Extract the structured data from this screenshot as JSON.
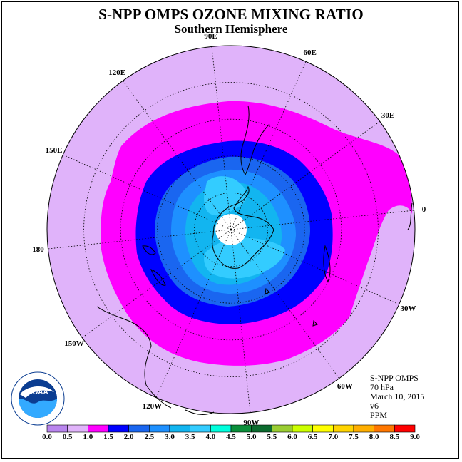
{
  "title": "S-NPP OMPS OZONE MIXING RATIO",
  "subtitle": "Southern Hemisphere",
  "longitude_labels": [
    {
      "text": "90W",
      "lon": -90
    },
    {
      "text": "60W",
      "lon": -60
    },
    {
      "text": "30W",
      "lon": -30
    },
    {
      "text": "0",
      "lon": 0
    },
    {
      "text": "30E",
      "lon": 30
    },
    {
      "text": "60E",
      "lon": 60
    },
    {
      "text": "90E",
      "lon": 90
    },
    {
      "text": "120E",
      "lon": 120
    },
    {
      "text": "150E",
      "lon": 150
    },
    {
      "text": "180",
      "lon": 180
    },
    {
      "text": "150W",
      "lon": -150
    },
    {
      "text": "120W",
      "lon": -120
    }
  ],
  "info": {
    "instrument": "S-NPP OMPS",
    "level": "70 hPa",
    "date": "March 10, 2015",
    "version": "v6",
    "units": "PPM"
  },
  "logo_text": "NOAA",
  "colorbar": {
    "labels": [
      "0.0",
      "0.5",
      "1.0",
      "1.5",
      "2.0",
      "2.5",
      "3.0",
      "3.5",
      "4.0",
      "4.5",
      "5.0",
      "5.5",
      "6.0",
      "6.5",
      "7.0",
      "7.5",
      "8.0",
      "8.5",
      "9.0"
    ],
    "colors": [
      "#b985ee",
      "#e0b3fa",
      "#ff00ff",
      "#0000ff",
      "#1a66f0",
      "#1e90ff",
      "#12b5f0",
      "#33ccff",
      "#00ffdd",
      "#0a8f3a",
      "#0b6b2e",
      "#9acd32",
      "#ccff00",
      "#ffff00",
      "#ffd400",
      "#ffae00",
      "#ff7700",
      "#ff0000",
      "#8b5a2b"
    ]
  },
  "map_data": {
    "contours_ppm": [
      1.0,
      1.5,
      2.0,
      2.5,
      3.0,
      3.5
    ],
    "background_level": "0.5-1.0",
    "land_colors": {
      "polar_cap": "#ffffff"
    }
  }
}
